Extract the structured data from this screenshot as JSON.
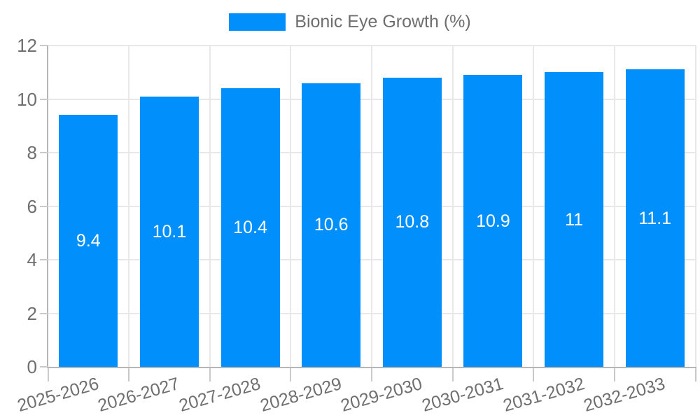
{
  "legend": {
    "label": "Bionic Eye Growth (%)"
  },
  "chart_data": {
    "type": "bar",
    "title": "Bionic Eye Growth (%)",
    "xlabel": "",
    "ylabel": "",
    "categories": [
      "2025-2026",
      "2026-2027",
      "2027-2028",
      "2028-2029",
      "2029-2030",
      "2030-2031",
      "2031-2032",
      "2032-2033"
    ],
    "values": [
      9.4,
      10.1,
      10.4,
      10.6,
      10.8,
      10.9,
      11,
      11.1
    ],
    "bar_value_labels": [
      "9.4",
      "10.1",
      "10.4",
      "10.6",
      "10.8",
      "10.9",
      "11",
      "11.1"
    ],
    "ylim": [
      0,
      12
    ],
    "yticks": [
      0,
      2,
      4,
      6,
      8,
      10,
      12
    ],
    "grid": true,
    "legend_position": "top",
    "colors": {
      "bar": "#008FFB",
      "bar_label": "#ffffff",
      "axis_label": "#6f6f6f",
      "legend_text": "#6e6e6e",
      "gridline": "#e8e8e8",
      "tick": "#c9c9c9",
      "axis_line": "#b5b5b5"
    }
  }
}
